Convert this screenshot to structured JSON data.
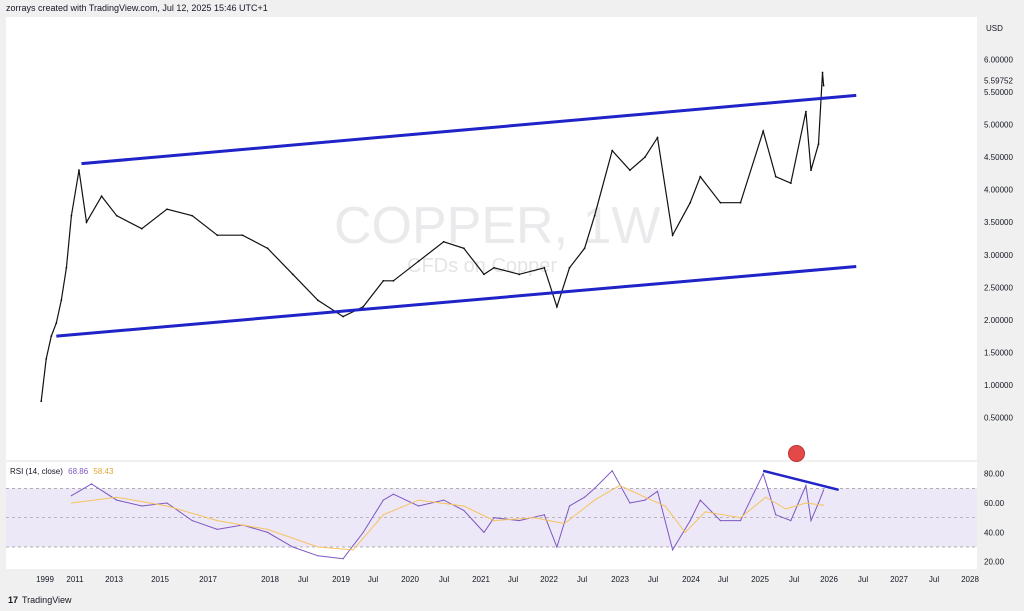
{
  "header": {
    "text": "zorrays created with TradingView.com, Jul 12, 2025 15:46 UTC+1"
  },
  "currency": "USD",
  "watermark": {
    "title": "COPPER, 1W",
    "subtitle": "CFDs on Copper"
  },
  "footer": {
    "brand": "TradingView",
    "logo": "17"
  },
  "rsi": {
    "label": "RSI (14, close)",
    "value": "68.86",
    "ma_value": "58.43",
    "colors": {
      "rsi": "#7e57c2",
      "ma": "#f7c35f"
    }
  },
  "price_tag": {
    "value": "5.59752"
  },
  "chart_data": [
    {
      "type": "line",
      "title": "COPPER, 1W",
      "subtitle": "CFDs on Copper",
      "ylabel": "USD",
      "yticks": [
        "6.00000",
        "5.50000",
        "5.00000",
        "4.50000",
        "4.00000",
        "3.50000",
        "3.00000",
        "2.50000",
        "2.00000",
        "1.50000",
        "1.00000",
        "0.50000"
      ],
      "ylim": [
        0.0,
        6.5
      ],
      "xticks": [
        "1999",
        "2011",
        "2013",
        "2015",
        "2017",
        "2018",
        "Jul",
        "2019",
        "Jul",
        "2020",
        "Jul",
        "2021",
        "Jul",
        "2022",
        "Jul",
        "2023",
        "Jul",
        "2024",
        "Jul",
        "2025",
        "Jul",
        "2026",
        "Jul",
        "2027",
        "Jul",
        "2028"
      ],
      "series": [
        {
          "values": [
            [
              2010.0,
              0.75
            ],
            [
              2010.1,
              1.4
            ],
            [
              2010.2,
              1.75
            ],
            [
              2010.3,
              1.95
            ],
            [
              2010.4,
              2.3
            ],
            [
              2010.5,
              2.8
            ],
            [
              2010.6,
              3.6
            ],
            [
              2010.75,
              4.3
            ],
            [
              2010.9,
              3.5
            ],
            [
              2011.2,
              3.9
            ],
            [
              2011.5,
              3.6
            ],
            [
              2012.0,
              3.4
            ],
            [
              2012.5,
              3.7
            ],
            [
              2013.0,
              3.6
            ],
            [
              2013.5,
              3.3
            ],
            [
              2014.0,
              3.3
            ],
            [
              2014.5,
              3.1
            ],
            [
              2015.0,
              2.7
            ],
            [
              2015.5,
              2.3
            ],
            [
              2016.0,
              2.05
            ],
            [
              2016.4,
              2.2
            ],
            [
              2016.8,
              2.6
            ],
            [
              2017.0,
              2.6
            ],
            [
              2017.5,
              2.9
            ],
            [
              2018.0,
              3.2
            ],
            [
              2018.4,
              3.1
            ],
            [
              2018.8,
              2.7
            ],
            [
              2019.0,
              2.8
            ],
            [
              2019.5,
              2.7
            ],
            [
              2020.0,
              2.8
            ],
            [
              2020.25,
              2.2
            ],
            [
              2020.5,
              2.8
            ],
            [
              2020.8,
              3.1
            ],
            [
              2021.0,
              3.6
            ],
            [
              2021.35,
              4.6
            ],
            [
              2021.7,
              4.3
            ],
            [
              2022.0,
              4.5
            ],
            [
              2022.25,
              4.8
            ],
            [
              2022.55,
              3.3
            ],
            [
              2022.9,
              3.8
            ],
            [
              2023.1,
              4.2
            ],
            [
              2023.5,
              3.8
            ],
            [
              2023.9,
              3.8
            ],
            [
              2024.35,
              4.9
            ],
            [
              2024.6,
              4.2
            ],
            [
              2024.9,
              4.1
            ],
            [
              2025.2,
              5.2
            ],
            [
              2025.3,
              4.3
            ],
            [
              2025.45,
              4.7
            ],
            [
              2025.53,
              5.8
            ],
            [
              2025.55,
              5.6
            ]
          ]
        }
      ],
      "trendlines": [
        {
          "label": "upper",
          "points": [
            [
              2010.8,
              4.4
            ],
            [
              2026.2,
              5.45
            ]
          ]
        },
        {
          "label": "lower",
          "points": [
            [
              2010.3,
              1.75
            ],
            [
              2026.2,
              2.82
            ]
          ]
        }
      ]
    },
    {
      "type": "line",
      "title": "RSI (14, close)",
      "yticks": [
        "80.00",
        "60.00",
        "40.00",
        "20.00"
      ],
      "ylim": [
        15,
        88
      ],
      "bands": {
        "upper": 70,
        "mid": 50,
        "lower": 30
      },
      "series": [
        {
          "name": "RSI",
          "values": [
            [
              2010.6,
              65
            ],
            [
              2011.0,
              73
            ],
            [
              2011.5,
              62
            ],
            [
              2012.0,
              58
            ],
            [
              2012.5,
              60
            ],
            [
              2013.0,
              48
            ],
            [
              2013.5,
              42
            ],
            [
              2014.0,
              45
            ],
            [
              2014.5,
              40
            ],
            [
              2015.0,
              30
            ],
            [
              2015.5,
              24
            ],
            [
              2016.0,
              22
            ],
            [
              2016.4,
              40
            ],
            [
              2016.8,
              62
            ],
            [
              2017.0,
              66
            ],
            [
              2017.5,
              58
            ],
            [
              2018.0,
              62
            ],
            [
              2018.4,
              55
            ],
            [
              2018.8,
              40
            ],
            [
              2019.0,
              50
            ],
            [
              2019.5,
              48
            ],
            [
              2020.0,
              52
            ],
            [
              2020.25,
              30
            ],
            [
              2020.5,
              58
            ],
            [
              2020.8,
              64
            ],
            [
              2021.0,
              70
            ],
            [
              2021.35,
              82
            ],
            [
              2021.7,
              60
            ],
            [
              2022.0,
              62
            ],
            [
              2022.25,
              68
            ],
            [
              2022.55,
              28
            ],
            [
              2022.9,
              48
            ],
            [
              2023.1,
              62
            ],
            [
              2023.5,
              48
            ],
            [
              2023.9,
              48
            ],
            [
              2024.35,
              80
            ],
            [
              2024.6,
              52
            ],
            [
              2024.9,
              48
            ],
            [
              2025.2,
              72
            ],
            [
              2025.3,
              48
            ],
            [
              2025.45,
              60
            ],
            [
              2025.55,
              68.86
            ]
          ]
        },
        {
          "name": "RSI MA",
          "values": [
            [
              2010.6,
              60
            ],
            [
              2011.5,
              64
            ],
            [
              2012.5,
              58
            ],
            [
              2013.5,
              48
            ],
            [
              2014.5,
              42
            ],
            [
              2015.5,
              30
            ],
            [
              2016.2,
              28
            ],
            [
              2016.8,
              52
            ],
            [
              2017.5,
              62
            ],
            [
              2018.4,
              58
            ],
            [
              2019.0,
              48
            ],
            [
              2019.8,
              50
            ],
            [
              2020.4,
              46
            ],
            [
              2021.0,
              62
            ],
            [
              2021.5,
              72
            ],
            [
              2022.0,
              64
            ],
            [
              2022.4,
              58
            ],
            [
              2022.8,
              40
            ],
            [
              2023.2,
              54
            ],
            [
              2023.9,
              50
            ],
            [
              2024.4,
              64
            ],
            [
              2024.8,
              56
            ],
            [
              2025.2,
              60
            ],
            [
              2025.55,
              58.43
            ]
          ]
        }
      ],
      "trendlines": [
        {
          "label": "divergence",
          "points": [
            [
              2024.35,
              82
            ],
            [
              2025.85,
              69
            ]
          ]
        }
      ]
    }
  ]
}
